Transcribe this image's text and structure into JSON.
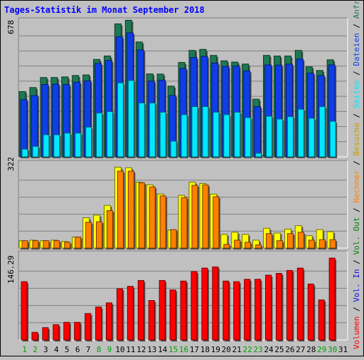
{
  "chart_data": [
    {
      "type": "bar",
      "title": "Tages-Statistik im Monat September 2018",
      "panel": "top",
      "ymax_label": "678",
      "ylim": [
        0,
        678
      ],
      "categories": [
        "1",
        "2",
        "3",
        "4",
        "5",
        "6",
        "7",
        "8",
        "9",
        "10",
        "11",
        "12",
        "13",
        "14",
        "15",
        "16",
        "17",
        "18",
        "19",
        "20",
        "21",
        "22",
        "23",
        "24",
        "25",
        "26",
        "27",
        "28",
        "29",
        "30",
        "31"
      ],
      "weekend_days": [
        "1",
        "2",
        "8",
        "9",
        "15",
        "16",
        "22",
        "23",
        "29",
        "30"
      ],
      "grid": true,
      "series": [
        {
          "name": "Anfragen",
          "color": "#1c7a52",
          "values": [
            325,
            345,
            395,
            395,
            398,
            405,
            408,
            485,
            502,
            662,
            680,
            572,
            413,
            412,
            352,
            470,
            530,
            535,
            505,
            478,
            472,
            462,
            287,
            505,
            502,
            502,
            530,
            448,
            430,
            483,
            0
          ]
        },
        {
          "name": "Seiten",
          "color": "#0f3ee8",
          "values": [
            285,
            305,
            360,
            362,
            360,
            372,
            378,
            465,
            480,
            598,
            618,
            532,
            377,
            382,
            305,
            440,
            495,
            500,
            467,
            450,
            452,
            428,
            250,
            458,
            457,
            462,
            487,
            417,
            405,
            458,
            0
          ]
        },
        {
          "name": "Dateien",
          "color": "#00e8ff",
          "values": [
            38,
            52,
            110,
            110,
            118,
            118,
            148,
            218,
            225,
            368,
            380,
            268,
            268,
            222,
            78,
            210,
            250,
            250,
            222,
            210,
            222,
            195,
            18,
            202,
            188,
            200,
            237,
            192,
            250,
            177,
            0
          ]
        }
      ],
      "labels": {
        "anfragen": "Anfragen",
        "dateien": "Dateien",
        "seiten": "Seiten"
      }
    },
    {
      "type": "bar",
      "panel": "middle",
      "ymax_label": "322",
      "ylim": [
        0,
        322
      ],
      "series": [
        {
          "name": "Besuche",
          "color": "#ffff00",
          "values": [
            28,
            30,
            28,
            30,
            25,
            42,
            115,
            125,
            162,
            307,
            305,
            250,
            240,
            205,
            68,
            200,
            250,
            245,
            205,
            52,
            60,
            52,
            30,
            75,
            57,
            72,
            85,
            47,
            70,
            62,
            0
          ]
        },
        {
          "name": "Rechner",
          "color": "#ff8000",
          "values": [
            28,
            28,
            28,
            28,
            22,
            42,
            98,
            100,
            142,
            292,
            292,
            248,
            232,
            198,
            70,
            192,
            238,
            240,
            195,
            14,
            30,
            22,
            12,
            55,
            28,
            55,
            60,
            30,
            32,
            32,
            0
          ]
        }
      ],
      "labels": {
        "besuche": "Besuche",
        "rechner": "Rechner"
      }
    },
    {
      "type": "bar",
      "panel": "bottom",
      "ymax_label": "146.29",
      "ylim": [
        0,
        146.29
      ],
      "series": [
        {
          "name": "Volumen",
          "color": "#ff0000",
          "values": [
            99,
            13,
            21,
            26,
            30,
            30,
            45,
            56,
            63,
            87,
            91,
            101,
            67,
            101,
            85,
            100,
            116,
            122,
            124,
            100,
            99,
            103,
            103,
            110,
            113,
            118,
            122,
            95,
            68,
            139,
            0
          ]
        }
      ],
      "labels": {
        "volout": "Vol. Out",
        "volin": "Vol. In",
        "volumen": "Volumen"
      }
    }
  ],
  "separator": "/",
  "colors": {
    "background": "#c0c0c0",
    "grid": "#808080",
    "weekday_label": "#000000",
    "weekend_label": "#00a000",
    "title": "#0000ff"
  }
}
